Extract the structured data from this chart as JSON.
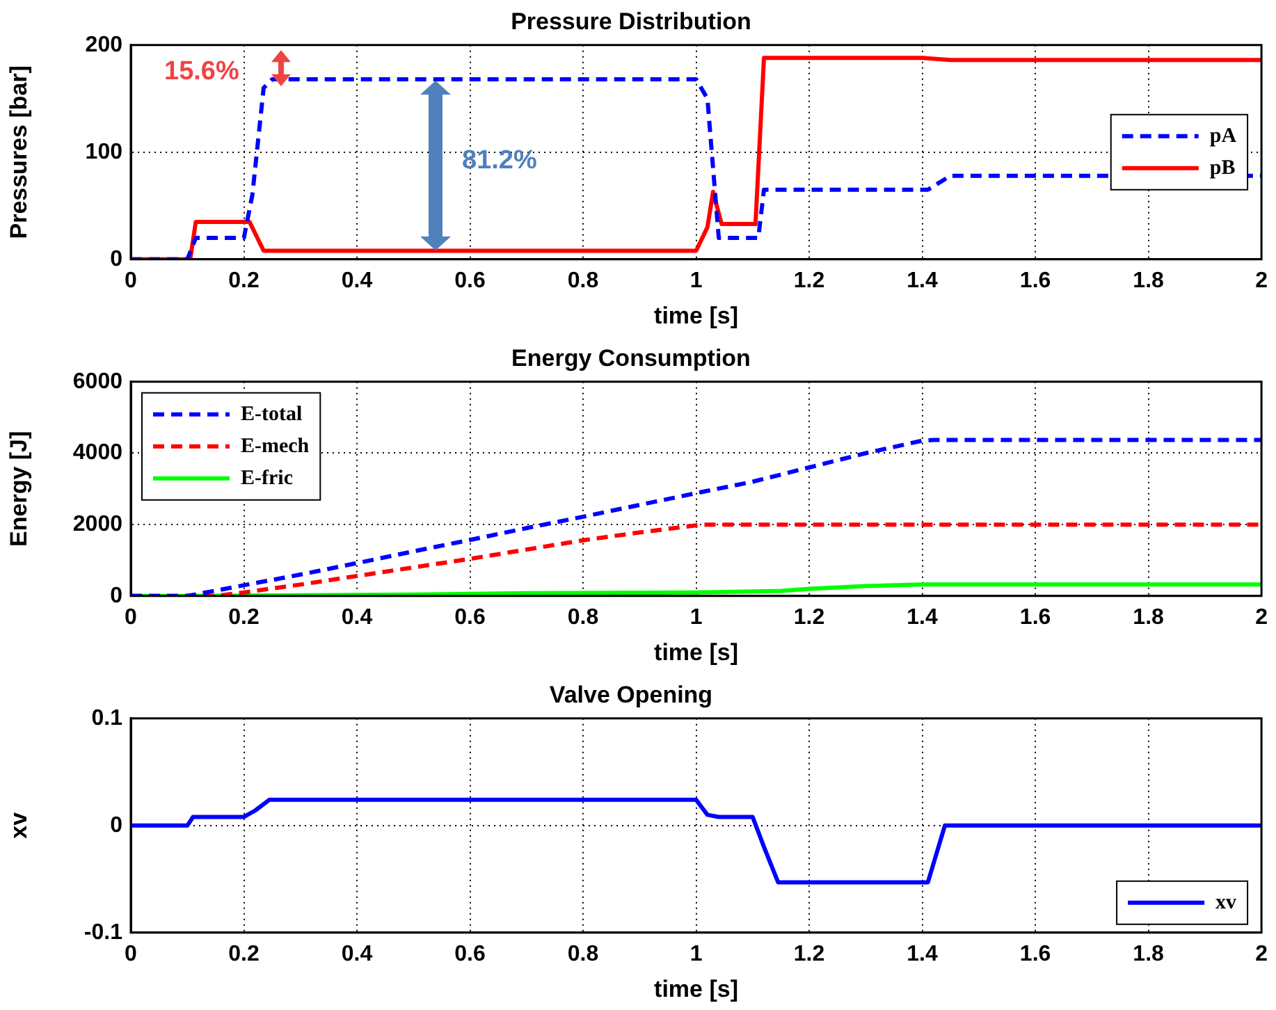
{
  "chart_data": [
    {
      "type": "line",
      "title": "Pressure Distribution",
      "xlabel": "time [s]",
      "ylabel": "Pressures [bar]",
      "xlim": [
        0,
        2
      ],
      "xticks": [
        0,
        0.2,
        0.4,
        0.6,
        0.8,
        1,
        1.2,
        1.4,
        1.6,
        1.8,
        2
      ],
      "ylim": [
        0,
        200
      ],
      "yticks": [
        0,
        100,
        200
      ],
      "grid": true,
      "legend": "right",
      "marker": "none",
      "series": [
        {
          "name": "pA",
          "color": "#0000ff",
          "line_style": "dashed",
          "x": [
            0,
            0.1,
            0.115,
            0.2,
            0.215,
            0.235,
            0.25,
            1.0,
            1.02,
            1.04,
            1.11,
            1.12,
            1.41,
            1.45,
            2
          ],
          "values": [
            0,
            0,
            20,
            20,
            60,
            160,
            168,
            168,
            150,
            20,
            20,
            65,
            65,
            78,
            78
          ]
        },
        {
          "name": "pB",
          "color": "#ff0000",
          "line_style": "solid",
          "x": [
            0,
            0.105,
            0.115,
            0.21,
            0.235,
            1.0,
            1.02,
            1.03,
            1.045,
            1.105,
            1.12,
            1.4,
            1.45,
            2
          ],
          "values": [
            0,
            0,
            35,
            35,
            8,
            8,
            30,
            63,
            33,
            33,
            188,
            188,
            186,
            186
          ]
        }
      ],
      "annotations": [
        "15.6%",
        "81.2%"
      ]
    },
    {
      "type": "line",
      "title": "Energy Consumption",
      "xlabel": "time [s]",
      "ylabel": "Energy [J]",
      "xlim": [
        0,
        2
      ],
      "xticks": [
        0,
        0.2,
        0.4,
        0.6,
        0.8,
        1,
        1.2,
        1.4,
        1.6,
        1.8,
        2
      ],
      "ylim": [
        0,
        6000
      ],
      "yticks": [
        0,
        2000,
        4000,
        6000
      ],
      "grid": true,
      "legend": "top left",
      "marker": "none",
      "series": [
        {
          "name": "E-total",
          "color": "#0000ff",
          "line_style": "dashed",
          "x": [
            0,
            0.1,
            0.2,
            0.3,
            0.4,
            0.5,
            0.6,
            0.7,
            0.8,
            0.9,
            1.0,
            1.1,
            1.2,
            1.3,
            1.4,
            1.42,
            2
          ],
          "values": [
            0,
            0,
            300,
            600,
            920,
            1250,
            1570,
            1900,
            2220,
            2550,
            2880,
            3200,
            3600,
            4000,
            4350,
            4370,
            4370
          ]
        },
        {
          "name": "E-mech",
          "color": "#ff0000",
          "line_style": "dashed",
          "x": [
            0,
            0.15,
            0.2,
            0.3,
            0.4,
            0.5,
            0.6,
            0.7,
            0.8,
            0.9,
            1.0,
            1.02,
            2
          ],
          "values": [
            0,
            0,
            100,
            320,
            560,
            800,
            1040,
            1300,
            1560,
            1780,
            1980,
            2000,
            2000
          ]
        },
        {
          "name": "E-fric",
          "color": "#00ff00",
          "line_style": "solid",
          "x": [
            0,
            0.1,
            0.5,
            0.7,
            1.0,
            1.15,
            1.2,
            1.3,
            1.4,
            2
          ],
          "values": [
            0,
            0,
            40,
            80,
            100,
            140,
            200,
            280,
            320,
            320
          ]
        }
      ]
    },
    {
      "type": "line",
      "title": "Valve Opening",
      "xlabel": "time [s]",
      "ylabel": "xv",
      "xlim": [
        0,
        2
      ],
      "xticks": [
        0,
        0.2,
        0.4,
        0.6,
        0.8,
        1,
        1.2,
        1.4,
        1.6,
        1.8,
        2
      ],
      "ylim": [
        -0.1,
        0.1
      ],
      "yticks": [
        -0.1,
        0,
        0.1
      ],
      "grid": true,
      "legend": "bottom right",
      "marker": "none",
      "series": [
        {
          "name": "xv",
          "color": "#0000ff",
          "line_style": "solid",
          "x": [
            0,
            0.1,
            0.11,
            0.2,
            0.22,
            0.245,
            1.0,
            1.02,
            1.04,
            1.1,
            1.12,
            1.145,
            1.41,
            1.44,
            2
          ],
          "values": [
            0,
            0,
            0.008,
            0.008,
            0.014,
            0.024,
            0.024,
            0.01,
            0.008,
            0.008,
            -0.02,
            -0.053,
            -0.053,
            0,
            0
          ]
        }
      ]
    }
  ]
}
